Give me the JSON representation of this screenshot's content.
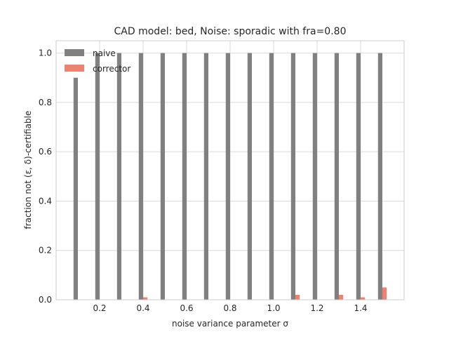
{
  "chart_data": {
    "type": "bar",
    "title": "CAD model: bed, Noise: sporadic with fra=0.80",
    "xlabel": "noise variance parameter σ",
    "ylabel": "fraction not (ε, δ)-certifiable",
    "xlim": [
      0.0,
      1.6
    ],
    "ylim": [
      0.0,
      1.05
    ],
    "xticks": [
      0.2,
      0.4,
      0.6,
      0.8,
      1.0,
      1.2,
      1.4
    ],
    "xtick_labels": [
      "0.2",
      "0.4",
      "0.6",
      "0.8",
      "1.0",
      "1.2",
      "1.4"
    ],
    "yticks": [
      0.0,
      0.2,
      0.4,
      0.6,
      0.8,
      1.0
    ],
    "ytick_labels": [
      "0.0",
      "0.2",
      "0.4",
      "0.6",
      "0.8",
      "1.0"
    ],
    "x": [
      0.1,
      0.2,
      0.3,
      0.4,
      0.5,
      0.6,
      0.7,
      0.8,
      0.9,
      1.0,
      1.1,
      1.2,
      1.3,
      1.4,
      1.5
    ],
    "series": [
      {
        "name": "naive",
        "color": "#808080",
        "values": [
          0.9,
          1.0,
          1.0,
          1.0,
          1.0,
          1.0,
          1.0,
          1.0,
          1.0,
          1.0,
          1.0,
          1.0,
          1.0,
          1.0,
          1.0
        ]
      },
      {
        "name": "corrector",
        "color": "#f08070",
        "values": [
          0.0,
          0.0,
          0.0,
          0.01,
          0.0,
          0.0,
          0.0,
          0.0,
          0.0,
          0.0,
          0.02,
          0.0,
          0.02,
          0.01,
          0.05
        ]
      }
    ],
    "grid": true,
    "legend_position": "top-left"
  }
}
